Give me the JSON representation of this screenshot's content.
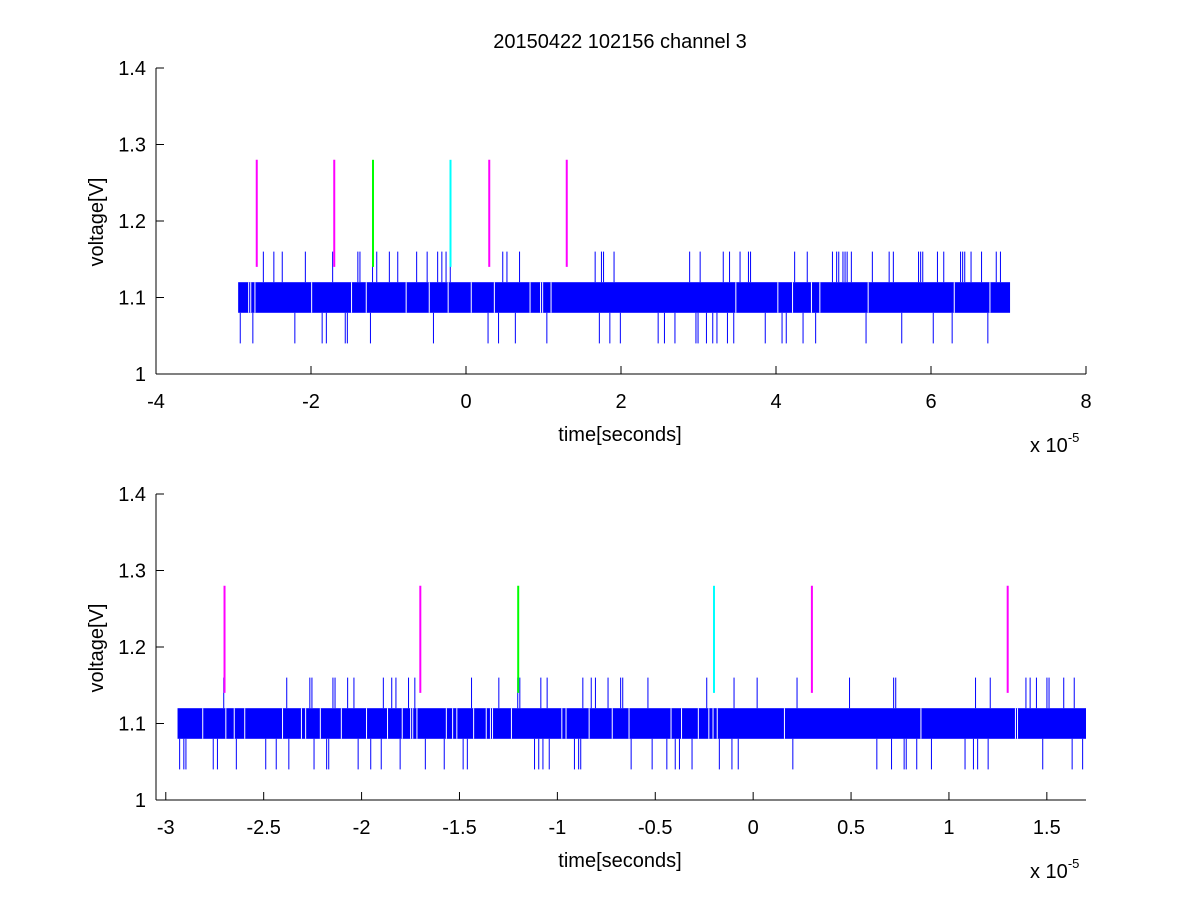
{
  "figure": {
    "title": "20150422 102156 channel 3",
    "background": "#ffffff"
  },
  "colors": {
    "trace": "#0000ff",
    "marker_magenta": "#ff00ff",
    "marker_green": "#00ff00",
    "marker_cyan": "#00ffff",
    "axes": "#000000"
  },
  "chart_data": [
    {
      "type": "line",
      "title": "20150422 102156 channel 3",
      "xlabel": "time[seconds]",
      "ylabel": "voltage[V]",
      "x_exponent_label": "x 10",
      "x_exponent": "-5",
      "xlim": [
        -4,
        8
      ],
      "ylim": [
        1,
        1.4
      ],
      "xticks": [
        "-4",
        "-2",
        "0",
        "2",
        "4",
        "6",
        "8"
      ],
      "xtick_values": [
        -4,
        -2,
        0,
        2,
        4,
        6,
        8
      ],
      "yticks": [
        "1",
        "1.1",
        "1.2",
        "1.3",
        "1.4"
      ],
      "ytick_values": [
        1,
        1.1,
        1.2,
        1.3,
        1.4
      ],
      "grid": false,
      "series": [
        {
          "x_range": [
            -2.94,
            7.02
          ],
          "baseline_band": [
            1.08,
            1.12
          ],
          "spike_high": 1.16,
          "spike_low": 1.04
        }
      ],
      "markers": [
        {
          "x": -2.7,
          "y_range": [
            1.14,
            1.28
          ],
          "color": "magenta"
        },
        {
          "x": -1.7,
          "y_range": [
            1.14,
            1.28
          ],
          "color": "magenta"
        },
        {
          "x": -1.2,
          "y_range": [
            1.14,
            1.28
          ],
          "color": "green"
        },
        {
          "x": -0.2,
          "y_range": [
            1.14,
            1.28
          ],
          "color": "cyan"
        },
        {
          "x": 0.3,
          "y_range": [
            1.14,
            1.28
          ],
          "color": "magenta"
        },
        {
          "x": 1.3,
          "y_range": [
            1.14,
            1.28
          ],
          "color": "magenta"
        }
      ]
    },
    {
      "type": "line",
      "title": "",
      "xlabel": "time[seconds]",
      "ylabel": "voltage[V]",
      "x_exponent_label": "x 10",
      "x_exponent": "-5",
      "xlim": [
        -3.05,
        1.7
      ],
      "ylim": [
        1,
        1.4
      ],
      "xticks": [
        "-3",
        "-2.5",
        "-2",
        "-1.5",
        "-1",
        "-0.5",
        "0",
        "0.5",
        "1",
        "1.5"
      ],
      "xtick_values": [
        -3,
        -2.5,
        -2,
        -1.5,
        -1,
        -0.5,
        0,
        0.5,
        1,
        1.5
      ],
      "yticks": [
        "1",
        "1.1",
        "1.2",
        "1.3",
        "1.4"
      ],
      "ytick_values": [
        1,
        1.1,
        1.2,
        1.3,
        1.4
      ],
      "grid": false,
      "series": [
        {
          "x_range": [
            -2.94,
            1.7
          ],
          "baseline_band": [
            1.08,
            1.12
          ],
          "spike_high": 1.16,
          "spike_low": 1.04
        }
      ],
      "markers": [
        {
          "x": -2.7,
          "y_range": [
            1.14,
            1.28
          ],
          "color": "magenta"
        },
        {
          "x": -1.7,
          "y_range": [
            1.14,
            1.28
          ],
          "color": "magenta"
        },
        {
          "x": -1.2,
          "y_range": [
            1.14,
            1.28
          ],
          "color": "green"
        },
        {
          "x": -0.2,
          "y_range": [
            1.14,
            1.28
          ],
          "color": "cyan"
        },
        {
          "x": 0.3,
          "y_range": [
            1.14,
            1.28
          ],
          "color": "magenta"
        },
        {
          "x": 1.3,
          "y_range": [
            1.14,
            1.28
          ],
          "color": "magenta"
        }
      ]
    }
  ]
}
